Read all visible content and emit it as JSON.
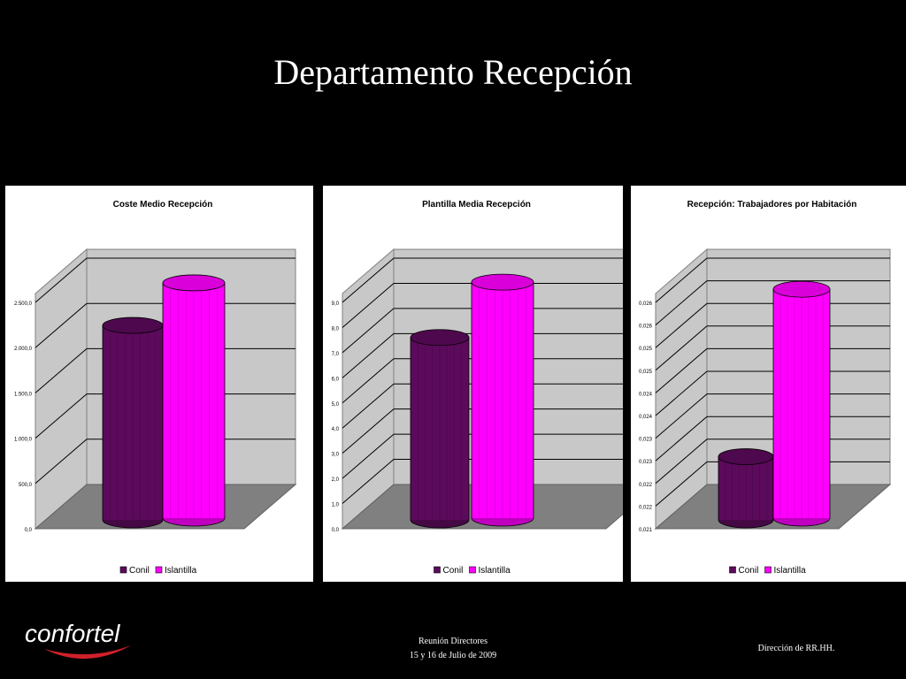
{
  "slide": {
    "title": "Departamento Recepción"
  },
  "footer": {
    "logo_text": "confortel",
    "meeting": "Reunión Directores",
    "date": "15 y 16 de Julio de 2009",
    "department": "Dirección de RR.HH."
  },
  "colors": {
    "conil": "#5c0a5c",
    "islantilla": "#ff00ff",
    "logo_swoosh": "#d0202a"
  },
  "chart_data": [
    {
      "type": "bar",
      "title": "Coste Medio Recepción",
      "categories": [
        ""
      ],
      "series": [
        {
          "name": "Conil",
          "values": [
            2050
          ]
        },
        {
          "name": "Islantilla",
          "values": [
            2520
          ]
        }
      ],
      "yticks": [
        "0,0",
        "500,0",
        "1.000,0",
        "1.500,0",
        "2.000,0",
        "2.500,0"
      ],
      "ylim": [
        0,
        2500
      ],
      "grid": true,
      "legend": "bottom"
    },
    {
      "type": "bar",
      "title": "Plantilla Media Recepción",
      "categories": [
        ""
      ],
      "series": [
        {
          "name": "Conil",
          "values": [
            6.9
          ]
        },
        {
          "name": "Islantilla",
          "values": [
            9.1
          ]
        }
      ],
      "yticks": [
        "0,0",
        "1,0",
        "2,0",
        "3,0",
        "4,0",
        "5,0",
        "6,0",
        "7,0",
        "8,0",
        "9,0"
      ],
      "ylim": [
        0,
        9
      ],
      "grid": true,
      "legend": "bottom"
    },
    {
      "type": "bar",
      "title": "Recepción: Trabajadores por Habitación",
      "categories": [
        ""
      ],
      "series": [
        {
          "name": "Conil",
          "values": [
            0.0222
          ]
        },
        {
          "name": "Islantilla",
          "values": [
            0.0259
          ]
        }
      ],
      "yticks": [
        "0,021",
        "0,022",
        "0,022",
        "0,023",
        "0,023",
        "0,024",
        "0,024",
        "0,025",
        "0,025",
        "0,026",
        "0,026"
      ],
      "ylim": [
        0.021,
        0.026
      ],
      "grid": true,
      "legend": "bottom"
    }
  ]
}
